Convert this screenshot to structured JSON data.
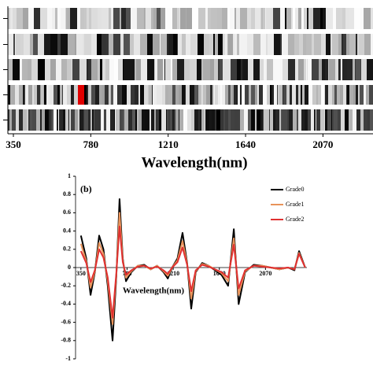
{
  "chart_data": [
    {
      "type": "barcode",
      "xlim": [
        350,
        2300
      ],
      "xticks": [
        350,
        780,
        1210,
        1640,
        2070
      ],
      "xlabel": "Wavelength(nm)"
    },
    {
      "type": "line",
      "panel_label": "(b)",
      "xlabel": "Wavelength(nm)",
      "x": [
        350,
        400,
        440,
        480,
        520,
        560,
        600,
        645,
        680,
        710,
        740,
        770,
        820,
        880,
        940,
        1000,
        1060,
        1120,
        1160,
        1200,
        1250,
        1297,
        1340,
        1378,
        1420,
        1480,
        1540,
        1600,
        1660,
        1722,
        1775,
        1820,
        1880,
        1960,
        2040,
        2120,
        2200,
        2280,
        2340,
        2383,
        2440
      ],
      "series": [
        {
          "name": "Grade0",
          "color": "#000000",
          "values": [
            0.35,
            0.1,
            -0.3,
            -0.05,
            0.35,
            0.2,
            -0.2,
            -0.8,
            -0.1,
            0.75,
            0.1,
            -0.15,
            -0.05,
            0.02,
            0.03,
            -0.02,
            0.02,
            -0.05,
            -0.12,
            0.0,
            0.1,
            0.38,
            0.05,
            -0.45,
            -0.05,
            0.05,
            0.02,
            -0.03,
            -0.08,
            -0.2,
            0.42,
            -0.4,
            -0.05,
            0.03,
            0.02,
            0.0,
            -0.02,
            0.0,
            -0.03,
            0.18,
            0.0
          ]
        },
        {
          "name": "Grade1",
          "color": "#e8935a",
          "values": [
            0.26,
            0.07,
            -0.22,
            -0.04,
            0.27,
            0.15,
            -0.15,
            -0.62,
            -0.08,
            0.6,
            0.08,
            -0.11,
            -0.04,
            0.02,
            0.02,
            -0.02,
            0.02,
            -0.04,
            -0.09,
            0.0,
            0.08,
            0.29,
            0.04,
            -0.34,
            -0.04,
            0.04,
            0.02,
            -0.02,
            -0.06,
            -0.15,
            0.32,
            -0.3,
            -0.04,
            0.02,
            0.02,
            0.0,
            -0.02,
            0.0,
            -0.02,
            0.16,
            0.0
          ]
        },
        {
          "name": "Grade2",
          "color": "#e03030",
          "values": [
            0.18,
            0.05,
            -0.16,
            -0.03,
            0.2,
            0.11,
            -0.11,
            -0.55,
            -0.06,
            0.45,
            0.06,
            -0.08,
            -0.03,
            0.01,
            0.02,
            -0.01,
            0.01,
            -0.03,
            -0.07,
            0.0,
            0.06,
            0.22,
            0.03,
            -0.26,
            -0.03,
            0.03,
            0.01,
            -0.02,
            -0.05,
            -0.11,
            0.25,
            -0.23,
            -0.03,
            0.02,
            0.01,
            0.0,
            -0.01,
            0.0,
            -0.02,
            0.15,
            0.0
          ]
        }
      ],
      "xlim": [
        300,
        2500
      ],
      "xticks": [
        350,
        780,
        1210,
        1640,
        2070
      ],
      "ylim": [
        -1,
        1
      ],
      "yticks": [
        -1,
        -0.8,
        -0.6,
        -0.4,
        -0.2,
        0,
        0.2,
        0.4,
        0.6,
        0.8,
        1
      ]
    }
  ]
}
